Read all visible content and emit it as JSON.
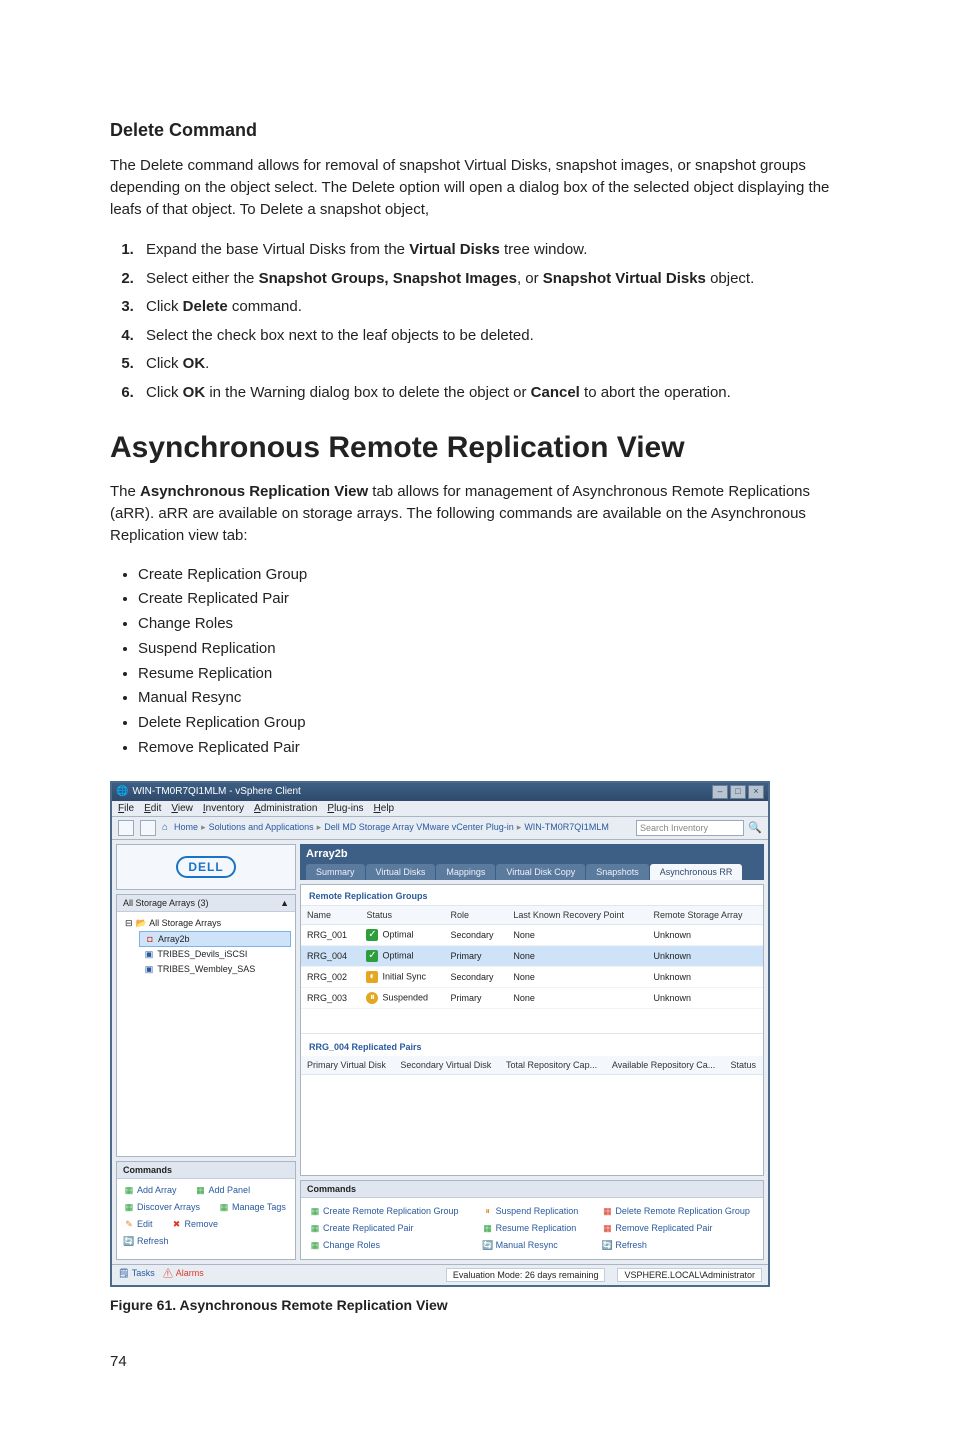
{
  "doc": {
    "delete_heading": "Delete Command",
    "delete_para": "The Delete command allows for removal of snapshot Virtual Disks, snapshot images, or snapshot groups depending on the object select. The Delete option will open a dialog box of the selected object displaying the leafs of that object. To Delete a snapshot object,",
    "steps": [
      {
        "pre": "Expand the base Virtual Disks from the ",
        "b": "Virtual Disks",
        "post": " tree window."
      },
      {
        "pre": "Select either the ",
        "b": "Snapshot Groups, Snapshot Images",
        "mid": ", or ",
        "b2": "Snapshot Virtual Disks",
        "post": " object."
      },
      {
        "pre": "Click ",
        "b": "Delete",
        "post": " command."
      },
      {
        "plain": "Select the check box next to the leaf objects to be deleted."
      },
      {
        "pre": "Click ",
        "b": "OK",
        "post": "."
      },
      {
        "pre": "Click ",
        "b": "OK",
        "mid": " in the Warning dialog box to delete the object or ",
        "b2": "Cancel",
        "post": " to abort the operation."
      }
    ],
    "async_heading": "Asynchronous Remote Replication View",
    "async_para_pre": "The ",
    "async_para_b": "Asynchronous Replication View",
    "async_para_post": " tab allows for management of Asynchronous Remote Replications (aRR). aRR are available on storage arrays. The following commands are available on the Asynchronous Replication view tab:",
    "bullets": [
      "Create Replication Group",
      "Create Replicated Pair",
      "Change Roles",
      "Suspend Replication",
      "Resume Replication",
      "Manual Resync",
      "Delete Replication Group",
      "Remove Replicated Pair"
    ],
    "figure_caption": "Figure 61. Asynchronous Remote Replication View",
    "page_num": "74"
  },
  "shot": {
    "window_title": "WIN-TM0R7QI1MLM - vSphere Client",
    "menu": [
      "File",
      "Edit",
      "View",
      "Inventory",
      "Administration",
      "Plug-ins",
      "Help"
    ],
    "breadcrumb": [
      "Home",
      "Solutions and Applications",
      "Dell MD Storage Array VMware vCenter Plug-in",
      "WIN-TM0R7QI1MLM"
    ],
    "search_placeholder": "Search Inventory",
    "logo_text": "DELL",
    "tree_title": "All Storage Arrays (3)",
    "tree": {
      "root": "All Storage Arrays",
      "items": [
        "Array2b",
        "TRIBES_Devils_iSCSI",
        "TRIBES_Wembley_SAS"
      ]
    },
    "left_commands_title": "Commands",
    "left_commands": [
      {
        "label": "Add Array",
        "color": "green"
      },
      {
        "label": "Add Panel",
        "color": "green"
      },
      {
        "label": "Discover Arrays",
        "color": "green"
      },
      {
        "label": "Manage Tags",
        "color": "green"
      },
      {
        "label": "Edit",
        "color": "orange"
      },
      {
        "label": "Remove",
        "color": "red",
        "x": true
      },
      {
        "label": "Refresh",
        "color": "blue"
      }
    ],
    "array_title": "Array2b",
    "tabs": [
      "Summary",
      "Virtual Disks",
      "Mappings",
      "Virtual Disk Copy",
      "Snapshots",
      "Asynchronous RR"
    ],
    "active_tab": 5,
    "groups_title": "Remote Replication Groups",
    "groups_cols": [
      "Name",
      "Status",
      "Role",
      "Last Known Recovery Point",
      "Remote Storage Array"
    ],
    "groups": [
      {
        "name": "RRG_001",
        "status": "Optimal",
        "s": "opt",
        "role": "Secondary",
        "lkrp": "None",
        "remote": "Unknown"
      },
      {
        "name": "RRG_004",
        "status": "Optimal",
        "s": "opt",
        "role": "Primary",
        "lkrp": "None",
        "remote": "Unknown",
        "sel": true
      },
      {
        "name": "RRG_002",
        "status": "Initial Sync",
        "s": "init",
        "role": "Secondary",
        "lkrp": "None",
        "remote": "Unknown"
      },
      {
        "name": "RRG_003",
        "status": "Suspended",
        "s": "susp",
        "role": "Primary",
        "lkrp": "None",
        "remote": "Unknown"
      }
    ],
    "pairs_title": "RRG_004 Replicated Pairs",
    "pairs_cols": [
      "Primary Virtual Disk",
      "Secondary Virtual Disk",
      "Total Repository Cap...",
      "Available Repository Ca...",
      "Status"
    ],
    "right_commands_title": "Commands",
    "right_commands": [
      {
        "label": "Create Remote Replication Group",
        "color": "green"
      },
      {
        "label": "Suspend Replication",
        "color": "orange"
      },
      {
        "label": "Delete Remote Replication Group",
        "color": "red"
      },
      {
        "label": "Create Replicated Pair",
        "color": "green"
      },
      {
        "label": "Resume Replication",
        "color": "green"
      },
      {
        "label": "Remove Replicated Pair",
        "color": "red"
      },
      {
        "label": "Change Roles",
        "color": "green"
      },
      {
        "label": "Manual Resync",
        "color": "blue"
      },
      {
        "label": "Refresh",
        "color": "blue"
      }
    ],
    "statusbar_left_items": [
      "Tasks",
      "Alarms"
    ],
    "statusbar_eval": "Evaluation Mode: 26 days remaining",
    "statusbar_user": "VSPHERE.LOCAL\\Administrator"
  }
}
